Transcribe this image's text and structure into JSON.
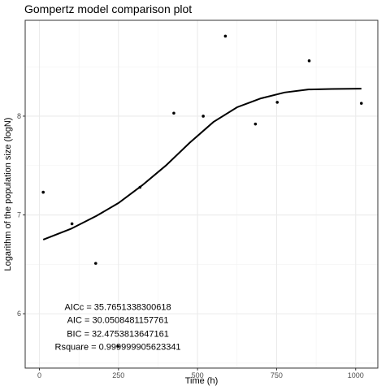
{
  "chart_data": {
    "type": "scatter",
    "title": "Gompertz model comparison plot",
    "xlabel": "Time (h)",
    "ylabel": "Logarithm of the population size (logN)",
    "xlim": [
      -45,
      1070
    ],
    "ylim": [
      5.45,
      8.97
    ],
    "grid": true,
    "x_ticks": [
      0,
      250,
      500,
      750,
      1000
    ],
    "y_ticks": [
      6,
      7,
      8
    ],
    "x_tick_labels": [
      "0",
      "250",
      "500",
      "750",
      "1000"
    ],
    "y_tick_labels": [
      "6",
      "7",
      "8"
    ],
    "points": [
      {
        "x": 12,
        "y": 7.23
      },
      {
        "x": 103,
        "y": 6.91
      },
      {
        "x": 178,
        "y": 6.51
      },
      {
        "x": 248,
        "y": 5.67
      },
      {
        "x": 318,
        "y": 7.28
      },
      {
        "x": 425,
        "y": 8.03
      },
      {
        "x": 518,
        "y": 8.0
      },
      {
        "x": 588,
        "y": 8.81
      },
      {
        "x": 683,
        "y": 7.92
      },
      {
        "x": 752,
        "y": 8.14
      },
      {
        "x": 853,
        "y": 8.56
      },
      {
        "x": 1018,
        "y": 8.13
      }
    ],
    "fitted_curve": [
      {
        "x": 12,
        "y": 6.75
      },
      {
        "x": 100,
        "y": 6.86
      },
      {
        "x": 180,
        "y": 6.99
      },
      {
        "x": 250,
        "y": 7.12
      },
      {
        "x": 325,
        "y": 7.3
      },
      {
        "x": 400,
        "y": 7.5
      },
      {
        "x": 475,
        "y": 7.73
      },
      {
        "x": 550,
        "y": 7.94
      },
      {
        "x": 625,
        "y": 8.09
      },
      {
        "x": 700,
        "y": 8.18
      },
      {
        "x": 775,
        "y": 8.24
      },
      {
        "x": 850,
        "y": 8.27
      },
      {
        "x": 925,
        "y": 8.275
      },
      {
        "x": 1018,
        "y": 8.278
      }
    ],
    "annotations": [
      {
        "text": "AICc = 35.7651338300618",
        "x": 248,
        "y": 6.07
      },
      {
        "text": "AIC = 30.0508481157761",
        "x": 248,
        "y": 5.94
      },
      {
        "text": "BIC = 32.4753813647161",
        "x": 248,
        "y": 5.8
      },
      {
        "text": "Rsquare = 0.999999905623341",
        "x": 248,
        "y": 5.67
      }
    ]
  }
}
